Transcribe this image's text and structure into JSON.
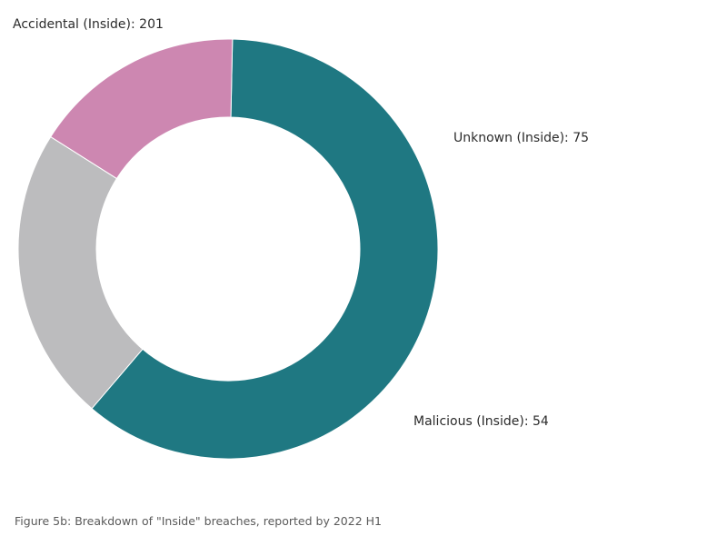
{
  "caption": "Figure 5b: Breakdown of \"Inside\" breaches, reported by 2022 H1",
  "chart_data": {
    "type": "pie",
    "donut": true,
    "slices": [
      {
        "label": "Accidental (Inside)",
        "value": 201,
        "color": "#1f7882"
      },
      {
        "label": "Unknown (Inside)",
        "value": 75,
        "color": "#bcbcbe"
      },
      {
        "label": "Malicious (Inside)",
        "value": 54,
        "color": "#cd87b1"
      }
    ],
    "data_labels": [
      "Accidental (Inside): 201",
      "Unknown (Inside): 75",
      "Malicious (Inside): 54"
    ]
  }
}
